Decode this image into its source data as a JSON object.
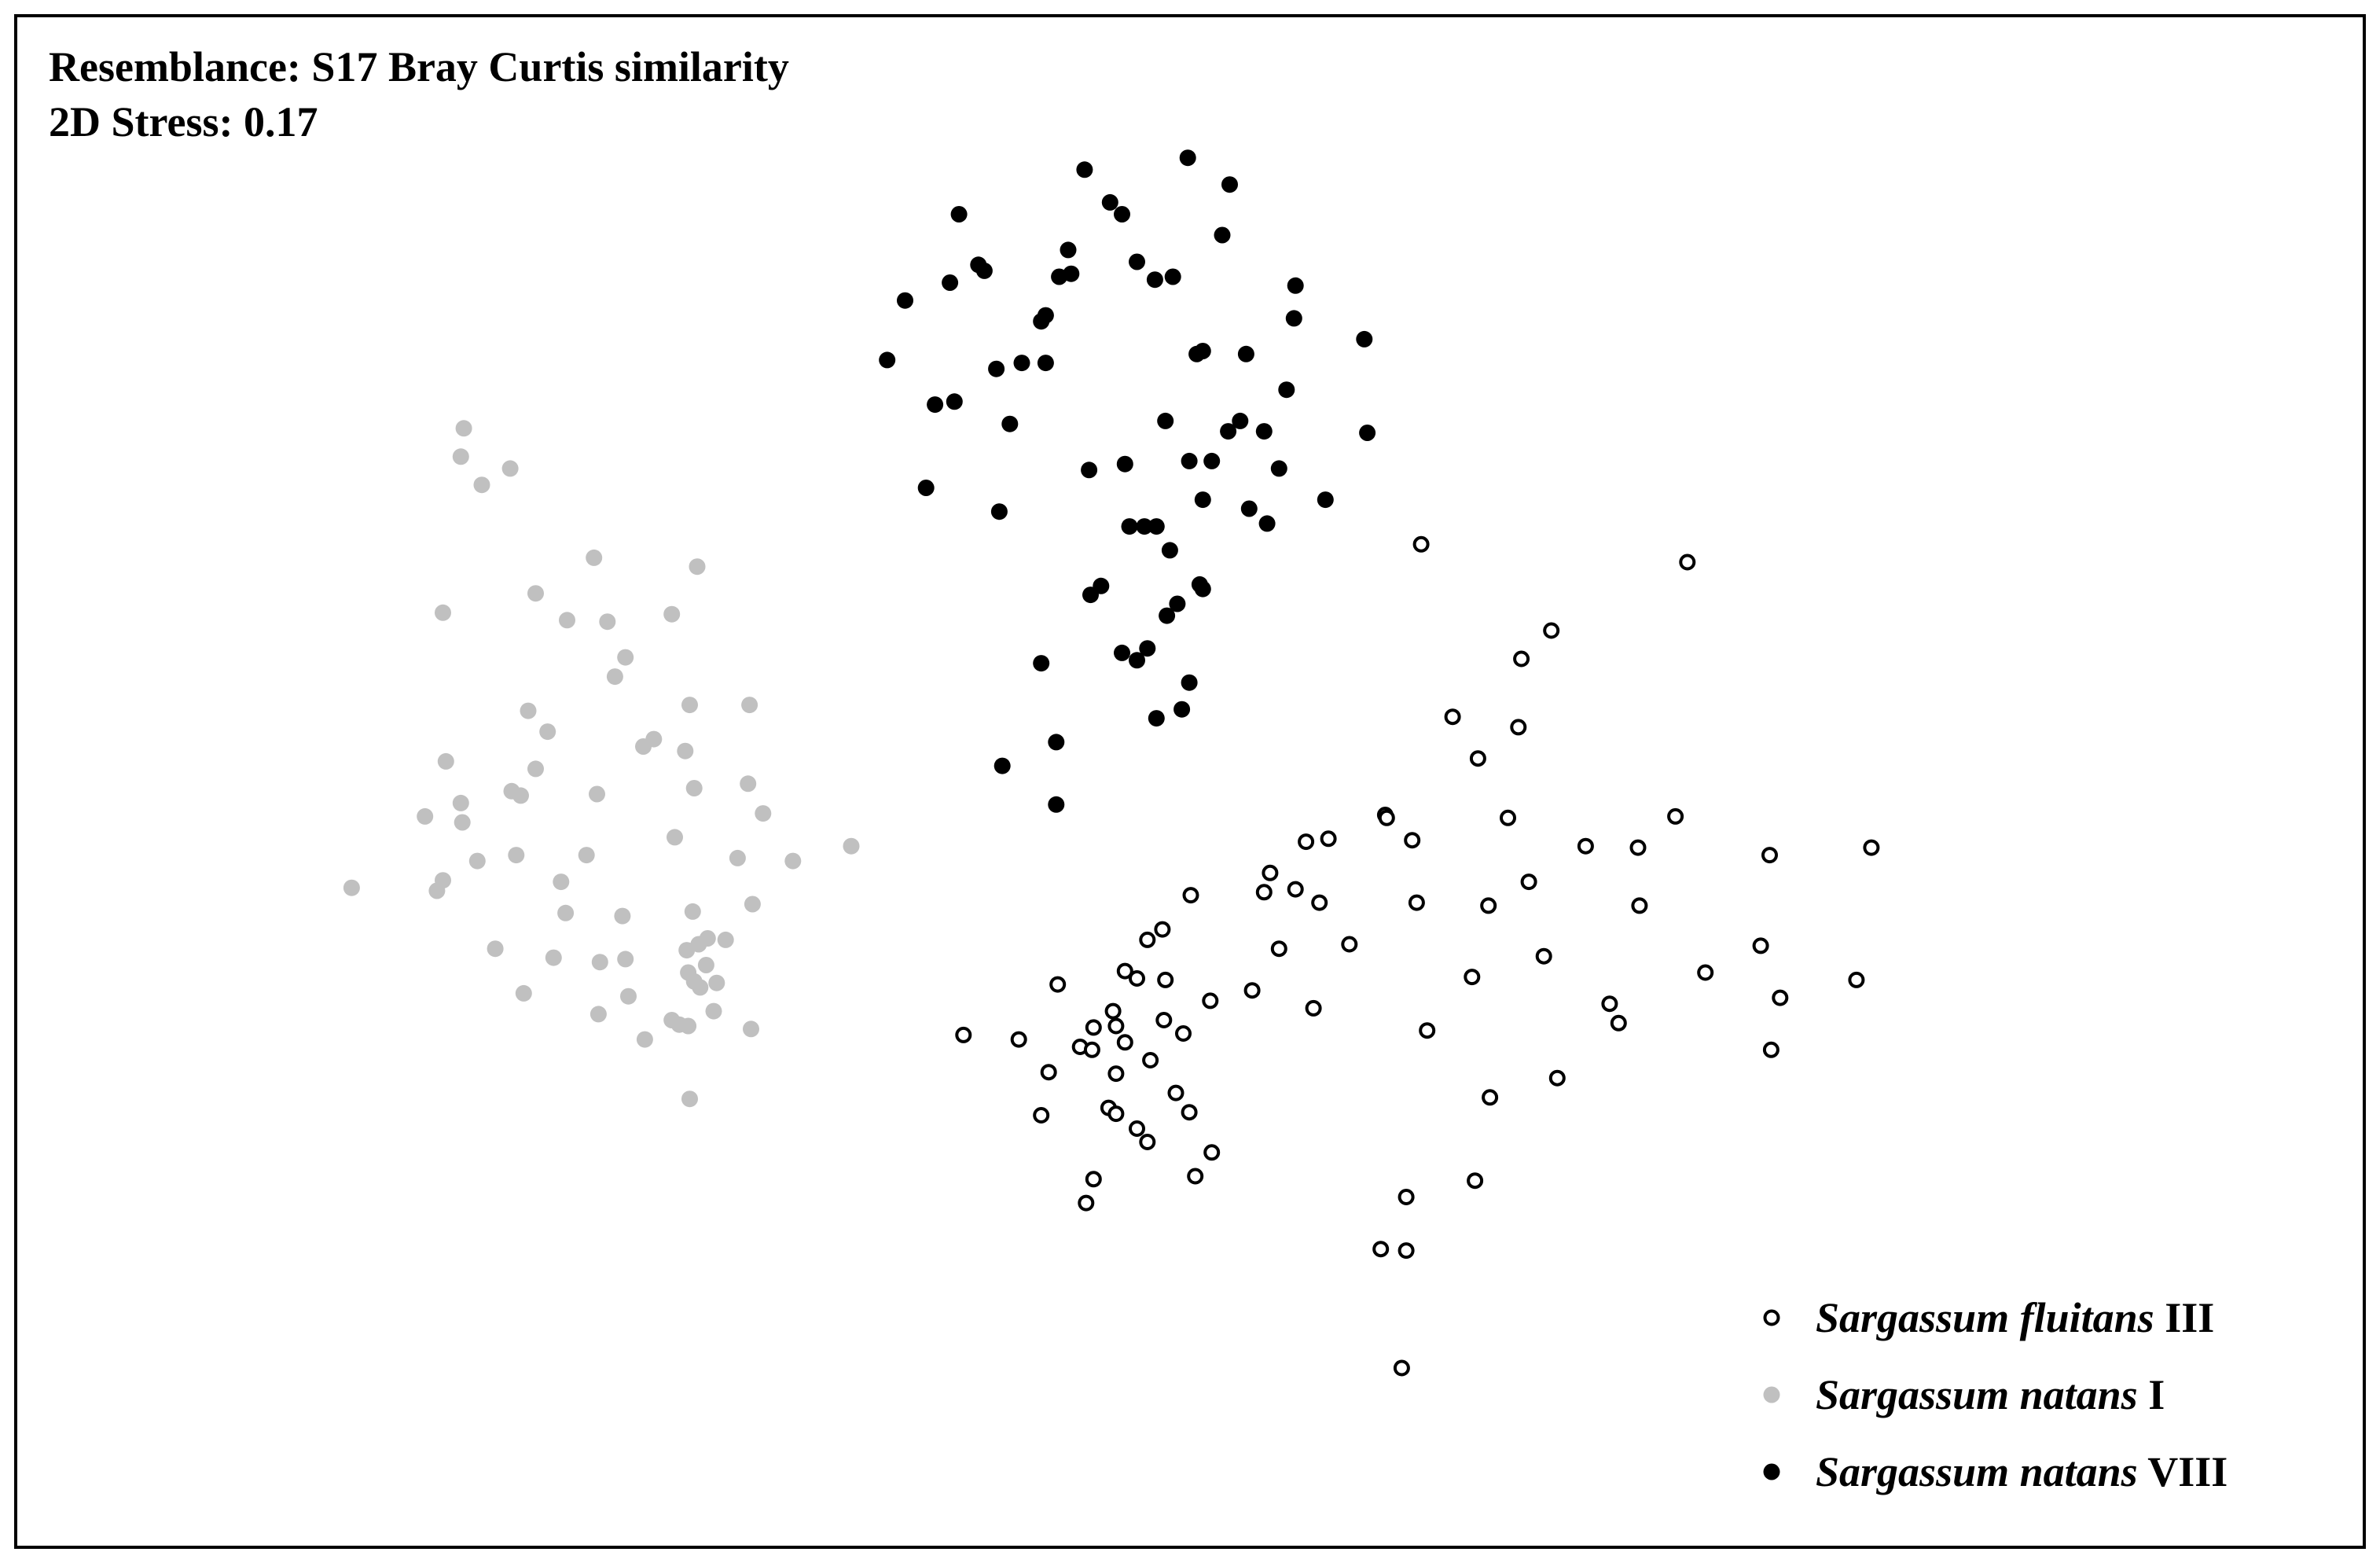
{
  "header": {
    "resemblance": "Resemblance: S17 Bray Curtis similarity",
    "stress": "2D Stress: 0.17"
  },
  "chart_data": {
    "type": "scatter",
    "title": "",
    "xlabel": "",
    "ylabel": "",
    "axes_visible": false,
    "grid": false,
    "legend_position": "bottom-right",
    "xlim": [
      0,
      1568
    ],
    "ylim": [
      0,
      1028
    ],
    "y_inverted": true,
    "series": [
      {
        "name_italic": "Sargassum natans",
        "name_roman": "VIII",
        "marker": "filled",
        "color": "#000000",
        "points": [
          [
            723,
            112
          ],
          [
            792,
            104
          ],
          [
            820,
            122
          ],
          [
            740,
            134
          ],
          [
            748,
            142
          ],
          [
            639,
            142
          ],
          [
            815,
            156
          ],
          [
            712,
            166
          ],
          [
            758,
            174
          ],
          [
            652,
            176
          ],
          [
            656,
            180
          ],
          [
            633,
            188
          ],
          [
            706,
            184
          ],
          [
            714,
            182
          ],
          [
            770,
            186
          ],
          [
            782,
            184
          ],
          [
            864,
            190
          ],
          [
            603,
            200
          ],
          [
            697,
            210
          ],
          [
            694,
            214
          ],
          [
            863,
            212
          ],
          [
            591,
            240
          ],
          [
            664,
            246
          ],
          [
            681,
            242
          ],
          [
            697,
            242
          ],
          [
            798,
            236
          ],
          [
            802,
            234
          ],
          [
            831,
            236
          ],
          [
            910,
            226
          ],
          [
            636,
            268
          ],
          [
            623,
            270
          ],
          [
            858,
            260
          ],
          [
            673,
            283
          ],
          [
            777,
            281
          ],
          [
            827,
            281
          ],
          [
            819,
            288
          ],
          [
            843,
            288
          ],
          [
            912,
            289
          ],
          [
            750,
            310
          ],
          [
            726,
            314
          ],
          [
            793,
            308
          ],
          [
            808,
            308
          ],
          [
            853,
            313
          ],
          [
            617,
            326
          ],
          [
            802,
            334
          ],
          [
            884,
            334
          ],
          [
            666,
            342
          ],
          [
            833,
            340
          ],
          [
            845,
            350
          ],
          [
            753,
            352
          ],
          [
            763,
            352
          ],
          [
            771,
            352
          ],
          [
            780,
            368
          ],
          [
            734,
            392
          ],
          [
            727,
            398
          ],
          [
            802,
            394
          ],
          [
            800,
            391
          ],
          [
            785,
            404
          ],
          [
            778,
            412
          ],
          [
            765,
            434
          ],
          [
            748,
            437
          ],
          [
            758,
            442
          ],
          [
            694,
            444
          ],
          [
            793,
            457
          ],
          [
            788,
            475
          ],
          [
            771,
            481
          ],
          [
            704,
            497
          ],
          [
            668,
            513
          ],
          [
            704,
            539
          ]
        ]
      },
      {
        "name_italic": "Sargassum natans",
        "name_roman": "I",
        "marker": "filled",
        "color": "#c0c0c0",
        "points": [
          [
            308,
            286
          ],
          [
            306,
            305
          ],
          [
            339,
            313
          ],
          [
            320,
            324
          ],
          [
            395,
            373
          ],
          [
            464,
            379
          ],
          [
            356,
            397
          ],
          [
            294,
            410
          ],
          [
            377,
            415
          ],
          [
            404,
            416
          ],
          [
            447,
            411
          ],
          [
            416,
            440
          ],
          [
            409,
            453
          ],
          [
            351,
            476
          ],
          [
            459,
            472
          ],
          [
            499,
            472
          ],
          [
            364,
            490
          ],
          [
            435,
            495
          ],
          [
            428,
            500
          ],
          [
            456,
            503
          ],
          [
            296,
            510
          ],
          [
            356,
            515
          ],
          [
            340,
            530
          ],
          [
            346,
            533
          ],
          [
            397,
            532
          ],
          [
            462,
            528
          ],
          [
            498,
            525
          ],
          [
            306,
            538
          ],
          [
            282,
            547
          ],
          [
            307,
            551
          ],
          [
            508,
            545
          ],
          [
            449,
            561
          ],
          [
            567,
            567
          ],
          [
            343,
            573
          ],
          [
            317,
            577
          ],
          [
            390,
            573
          ],
          [
            491,
            575
          ],
          [
            528,
            577
          ],
          [
            294,
            590
          ],
          [
            290,
            597
          ],
          [
            233,
            595
          ],
          [
            373,
            591
          ],
          [
            501,
            606
          ],
          [
            376,
            612
          ],
          [
            414,
            614
          ],
          [
            461,
            611
          ],
          [
            483,
            630
          ],
          [
            471,
            629
          ],
          [
            465,
            633
          ],
          [
            457,
            637
          ],
          [
            470,
            647
          ],
          [
            399,
            645
          ],
          [
            368,
            642
          ],
          [
            329,
            636
          ],
          [
            416,
            643
          ],
          [
            458,
            652
          ],
          [
            462,
            658
          ],
          [
            466,
            662
          ],
          [
            477,
            659
          ],
          [
            348,
            666
          ],
          [
            418,
            668
          ],
          [
            398,
            680
          ],
          [
            475,
            678
          ],
          [
            447,
            684
          ],
          [
            452,
            687
          ],
          [
            458,
            688
          ],
          [
            500,
            690
          ],
          [
            429,
            697
          ],
          [
            459,
            737
          ]
        ]
      },
      {
        "name_italic": "Sargassum fluitans",
        "name_roman": "III",
        "marker": "open",
        "color": "#000000",
        "points": [
          [
            948,
            364
          ],
          [
            1126,
            376
          ],
          [
            1035,
            422
          ],
          [
            1015,
            441
          ],
          [
            969,
            480
          ],
          [
            1013,
            487
          ],
          [
            986,
            508
          ],
          [
            924,
            546
          ],
          [
            925,
            548
          ],
          [
            1006,
            548
          ],
          [
            1118,
            547
          ],
          [
            871,
            564
          ],
          [
            886,
            562
          ],
          [
            942,
            563
          ],
          [
            1058,
            567
          ],
          [
            1093,
            568
          ],
          [
            1181,
            573
          ],
          [
            1249,
            568
          ],
          [
            847,
            585
          ],
          [
            843,
            598
          ],
          [
            864,
            596
          ],
          [
            880,
            605
          ],
          [
            794,
            600
          ],
          [
            945,
            605
          ],
          [
            993,
            607
          ],
          [
            1020,
            591
          ],
          [
            1094,
            607
          ],
          [
            775,
            623
          ],
          [
            765,
            630
          ],
          [
            853,
            636
          ],
          [
            900,
            633
          ],
          [
            1030,
            641
          ],
          [
            1175,
            634
          ],
          [
            750,
            651
          ],
          [
            758,
            656
          ],
          [
            777,
            657
          ],
          [
            705,
            660
          ],
          [
            982,
            655
          ],
          [
            1138,
            652
          ],
          [
            1239,
            657
          ],
          [
            835,
            664
          ],
          [
            807,
            671
          ],
          [
            1188,
            669
          ],
          [
            876,
            676
          ],
          [
            742,
            678
          ],
          [
            1074,
            673
          ],
          [
            1080,
            686
          ],
          [
            744,
            688
          ],
          [
            729,
            689
          ],
          [
            776,
            684
          ],
          [
            642,
            694
          ],
          [
            679,
            697
          ],
          [
            750,
            699
          ],
          [
            789,
            693
          ],
          [
            952,
            691
          ],
          [
            720,
            702
          ],
          [
            728,
            704
          ],
          [
            767,
            711
          ],
          [
            1182,
            704
          ],
          [
            699,
            719
          ],
          [
            744,
            720
          ],
          [
            1039,
            723
          ],
          [
            784,
            733
          ],
          [
            994,
            736
          ],
          [
            739,
            743
          ],
          [
            744,
            747
          ],
          [
            793,
            746
          ],
          [
            694,
            748
          ],
          [
            758,
            757
          ],
          [
            765,
            766
          ],
          [
            808,
            773
          ],
          [
            729,
            791
          ],
          [
            797,
            789
          ],
          [
            984,
            792
          ],
          [
            724,
            807
          ],
          [
            938,
            803
          ],
          [
            921,
            838
          ],
          [
            938,
            839
          ],
          [
            935,
            918
          ]
        ]
      }
    ]
  },
  "legend": {
    "items": [
      {
        "italic": "Sargassum fluitans",
        "roman": "III",
        "marker": "open",
        "color": "#000000"
      },
      {
        "italic": "Sargassum natans",
        "roman": "I",
        "marker": "filled",
        "color": "#c0c0c0"
      },
      {
        "italic": "Sargassum natans",
        "roman": "VIII",
        "marker": "filled",
        "color": "#000000"
      }
    ]
  }
}
